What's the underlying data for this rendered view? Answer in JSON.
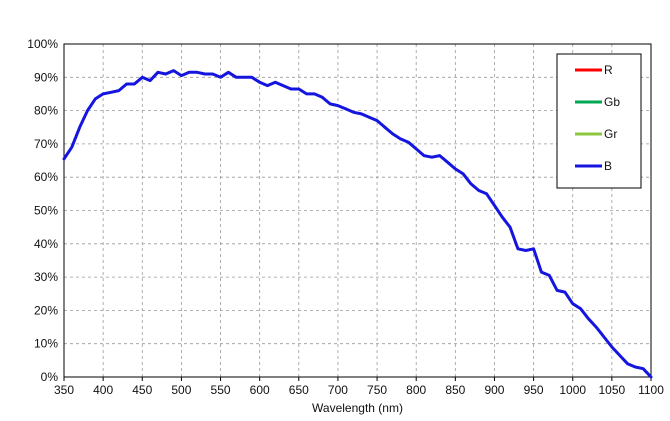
{
  "chart_data": {
    "type": "line",
    "title": "",
    "xlabel": "Wavelength (nm)",
    "ylabel": "",
    "xlim": [
      350,
      1100
    ],
    "ylim": [
      0,
      100
    ],
    "grid": true,
    "legend_position": "top-right",
    "x_ticks": [
      350,
      400,
      450,
      500,
      550,
      600,
      650,
      700,
      750,
      800,
      850,
      900,
      950,
      1000,
      1050,
      1100
    ],
    "y_ticks": [
      0,
      10,
      20,
      30,
      40,
      50,
      60,
      70,
      80,
      90,
      100
    ],
    "x_tick_labels": [
      "350",
      "400",
      "450",
      "500",
      "550",
      "600",
      "650",
      "700",
      "750",
      "800",
      "850",
      "900",
      "950",
      "1000",
      "1050",
      "1100"
    ],
    "y_tick_labels": [
      "0%",
      "10%",
      "20%",
      "30%",
      "40%",
      "50%",
      "60%",
      "70%",
      "80%",
      "90%",
      "100%"
    ],
    "legend": [
      {
        "name": "R",
        "color": "#ff0000"
      },
      {
        "name": "Gb",
        "color": "#00a651"
      },
      {
        "name": "Gr",
        "color": "#8dc63f"
      },
      {
        "name": "B",
        "color": "#1515e0"
      }
    ],
    "series": [
      {
        "name": "B",
        "color": "#1515e0",
        "x": [
          350,
          360,
          370,
          380,
          390,
          400,
          410,
          420,
          430,
          440,
          450,
          460,
          470,
          480,
          490,
          500,
          510,
          520,
          530,
          540,
          550,
          560,
          570,
          580,
          590,
          600,
          610,
          620,
          630,
          640,
          650,
          660,
          670,
          680,
          690,
          700,
          710,
          720,
          730,
          740,
          750,
          760,
          770,
          780,
          790,
          800,
          810,
          820,
          830,
          840,
          850,
          860,
          870,
          880,
          890,
          900,
          910,
          920,
          930,
          940,
          950,
          960,
          970,
          980,
          990,
          1000,
          1010,
          1020,
          1030,
          1040,
          1050,
          1060,
          1070,
          1080,
          1090,
          1100
        ],
        "values": [
          65.5,
          69,
          75,
          80,
          83.5,
          85,
          85.5,
          86,
          88,
          88,
          90,
          89,
          91.5,
          91,
          92,
          90.5,
          91.5,
          91.5,
          91,
          91,
          90,
          91.5,
          90,
          90,
          90,
          88.5,
          87.5,
          88.5,
          87.5,
          86.5,
          86.5,
          85,
          85,
          84,
          82,
          81.5,
          80.5,
          79.5,
          79,
          78,
          77,
          75,
          73,
          71.5,
          70.5,
          68.5,
          66.5,
          66,
          66.5,
          64.5,
          62.5,
          61,
          58,
          56,
          55,
          51.5,
          48,
          45,
          38.5,
          38,
          38.5,
          31.5,
          30.5,
          26,
          25.5,
          22,
          20.5,
          17.5,
          15,
          12,
          9,
          6.5,
          4,
          3,
          2.5,
          0
        ]
      }
    ]
  }
}
